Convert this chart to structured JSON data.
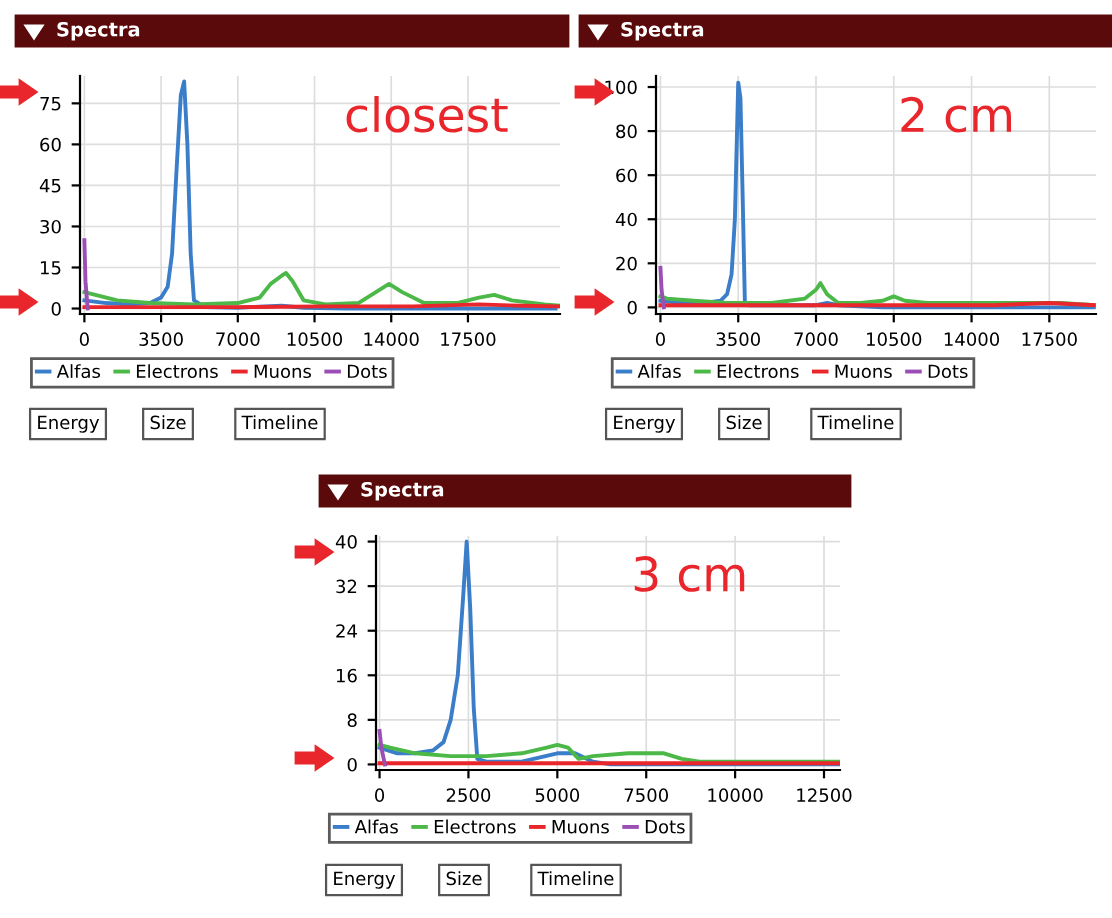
{
  "chart_data": [
    {
      "type": "line",
      "title": "Spectra",
      "annotations": [
        "closest",
        "Energy",
        "Size",
        "Timeline"
      ],
      "xlim": [
        -200,
        21700
      ],
      "ylim": [
        -2,
        85
      ],
      "xticks": [
        0,
        3500,
        7000,
        10500,
        14000,
        17500
      ],
      "yticks": [
        0,
        15,
        30,
        45,
        60,
        75
      ],
      "grid": true,
      "legend": "bottom",
      "series": [
        {
          "name": "Alfas",
          "color": "#3a7dc9",
          "x": [
            0,
            1000,
            2000,
            3000,
            3500,
            3800,
            4000,
            4200,
            4400,
            4550,
            4700,
            4850,
            5000,
            5500,
            7000,
            9000,
            10000,
            12000,
            16000,
            20000,
            21500
          ],
          "values": [
            3,
            2,
            1.5,
            2,
            4,
            8,
            20,
            50,
            78,
            83,
            60,
            20,
            3,
            0.5,
            0.3,
            1,
            0.3,
            0,
            0,
            0,
            0
          ]
        },
        {
          "name": "Electrons",
          "color": "#4cb848",
          "x": [
            0,
            500,
            1500,
            3000,
            5000,
            7000,
            8000,
            8500,
            9000,
            9200,
            9500,
            10000,
            11000,
            12500,
            13500,
            13900,
            14500,
            15500,
            17000,
            18000,
            18700,
            19500,
            21000,
            21700
          ],
          "values": [
            6,
            5,
            3,
            2,
            1.5,
            2,
            4,
            9,
            12,
            13,
            10,
            3,
            1.5,
            2,
            7,
            9,
            6,
            2,
            2,
            4,
            5,
            3,
            1.5,
            1
          ]
        },
        {
          "name": "Muons",
          "color": "#e8262b",
          "x": [
            0,
            3000,
            7000,
            11000,
            15000,
            18000,
            20000,
            21700
          ],
          "values": [
            0.5,
            0.5,
            0.5,
            0.8,
            0.8,
            1.5,
            1,
            0.8
          ]
        },
        {
          "name": "Dots",
          "color": "#9b4fb5",
          "x": [
            0,
            50,
            150
          ],
          "values": [
            25,
            10,
            0
          ]
        }
      ]
    },
    {
      "type": "line",
      "title": "Spectra",
      "annotations": [
        "2 cm",
        "Energy",
        "Size",
        "Timeline"
      ],
      "xlim": [
        -200,
        19600
      ],
      "ylim": [
        -3,
        105
      ],
      "xticks": [
        0,
        3500,
        7000,
        10500,
        14000,
        17500
      ],
      "yticks": [
        0,
        20,
        40,
        60,
        80,
        100
      ],
      "grid": true,
      "legend": "bottom",
      "series": [
        {
          "name": "Alfas",
          "color": "#3a7dc9",
          "x": [
            0,
            1000,
            2000,
            2700,
            3000,
            3200,
            3350,
            3500,
            3600,
            3700,
            3800,
            4000,
            5000,
            7000,
            7500,
            8000,
            10000,
            14000,
            19500
          ],
          "values": [
            3,
            2,
            2,
            3,
            6,
            15,
            40,
            102,
            95,
            50,
            2,
            1,
            1,
            1,
            2,
            1,
            0,
            0,
            0
          ]
        },
        {
          "name": "Electrons",
          "color": "#4cb848",
          "x": [
            0,
            300,
            1500,
            3000,
            5000,
            6500,
            7000,
            7200,
            7500,
            8000,
            9000,
            10000,
            10500,
            11000,
            12000,
            14000,
            16000,
            18000,
            19500
          ],
          "values": [
            5,
            4,
            3,
            2,
            2,
            4,
            8,
            11,
            6,
            2,
            2,
            3,
            5,
            3,
            2,
            2,
            2,
            2,
            1
          ]
        },
        {
          "name": "Muons",
          "color": "#e8262b",
          "x": [
            0,
            5000,
            10000,
            15000,
            17500,
            19500
          ],
          "values": [
            1,
            1,
            1,
            1,
            2,
            1
          ]
        },
        {
          "name": "Dots",
          "color": "#9b4fb5",
          "x": [
            0,
            50,
            150
          ],
          "values": [
            18,
            8,
            0
          ]
        }
      ]
    },
    {
      "type": "line",
      "title": "Spectra",
      "annotations": [
        "3 cm",
        "Energy",
        "Size",
        "Timeline"
      ],
      "xlim": [
        -100,
        12950
      ],
      "ylim": [
        -1,
        41
      ],
      "xticks": [
        0,
        2500,
        5000,
        7500,
        10000,
        12500
      ],
      "yticks": [
        0,
        8,
        16,
        24,
        32,
        40
      ],
      "grid": true,
      "legend": "bottom",
      "series": [
        {
          "name": "Alfas",
          "color": "#3a7dc9",
          "x": [
            0,
            500,
            1000,
            1500,
            1800,
            2000,
            2200,
            2350,
            2450,
            2550,
            2650,
            2750,
            3000,
            4000,
            5000,
            5500,
            6000,
            6500,
            8000,
            12900
          ],
          "values": [
            3,
            2,
            2,
            2.5,
            4,
            8,
            16,
            30,
            40,
            28,
            10,
            1,
            0.5,
            0.5,
            2,
            2,
            0.5,
            0,
            0,
            0
          ]
        },
        {
          "name": "Electrons",
          "color": "#4cb848",
          "x": [
            0,
            300,
            1000,
            2000,
            3000,
            4000,
            4700,
            5000,
            5300,
            5600,
            6000,
            7000,
            8000,
            8500,
            9000,
            11000,
            12900
          ],
          "values": [
            3.5,
            3,
            2,
            1.5,
            1.5,
            2,
            3,
            3.5,
            3,
            1,
            1.5,
            2,
            2,
            1,
            0.5,
            0.5,
            0.5
          ]
        },
        {
          "name": "Muons",
          "color": "#e8262b",
          "x": [
            0,
            6000,
            12900
          ],
          "values": [
            0.2,
            0.2,
            0.2
          ]
        },
        {
          "name": "Dots",
          "color": "#9b4fb5",
          "x": [
            0,
            50,
            150
          ],
          "values": [
            6,
            3,
            0
          ]
        }
      ]
    }
  ]
}
